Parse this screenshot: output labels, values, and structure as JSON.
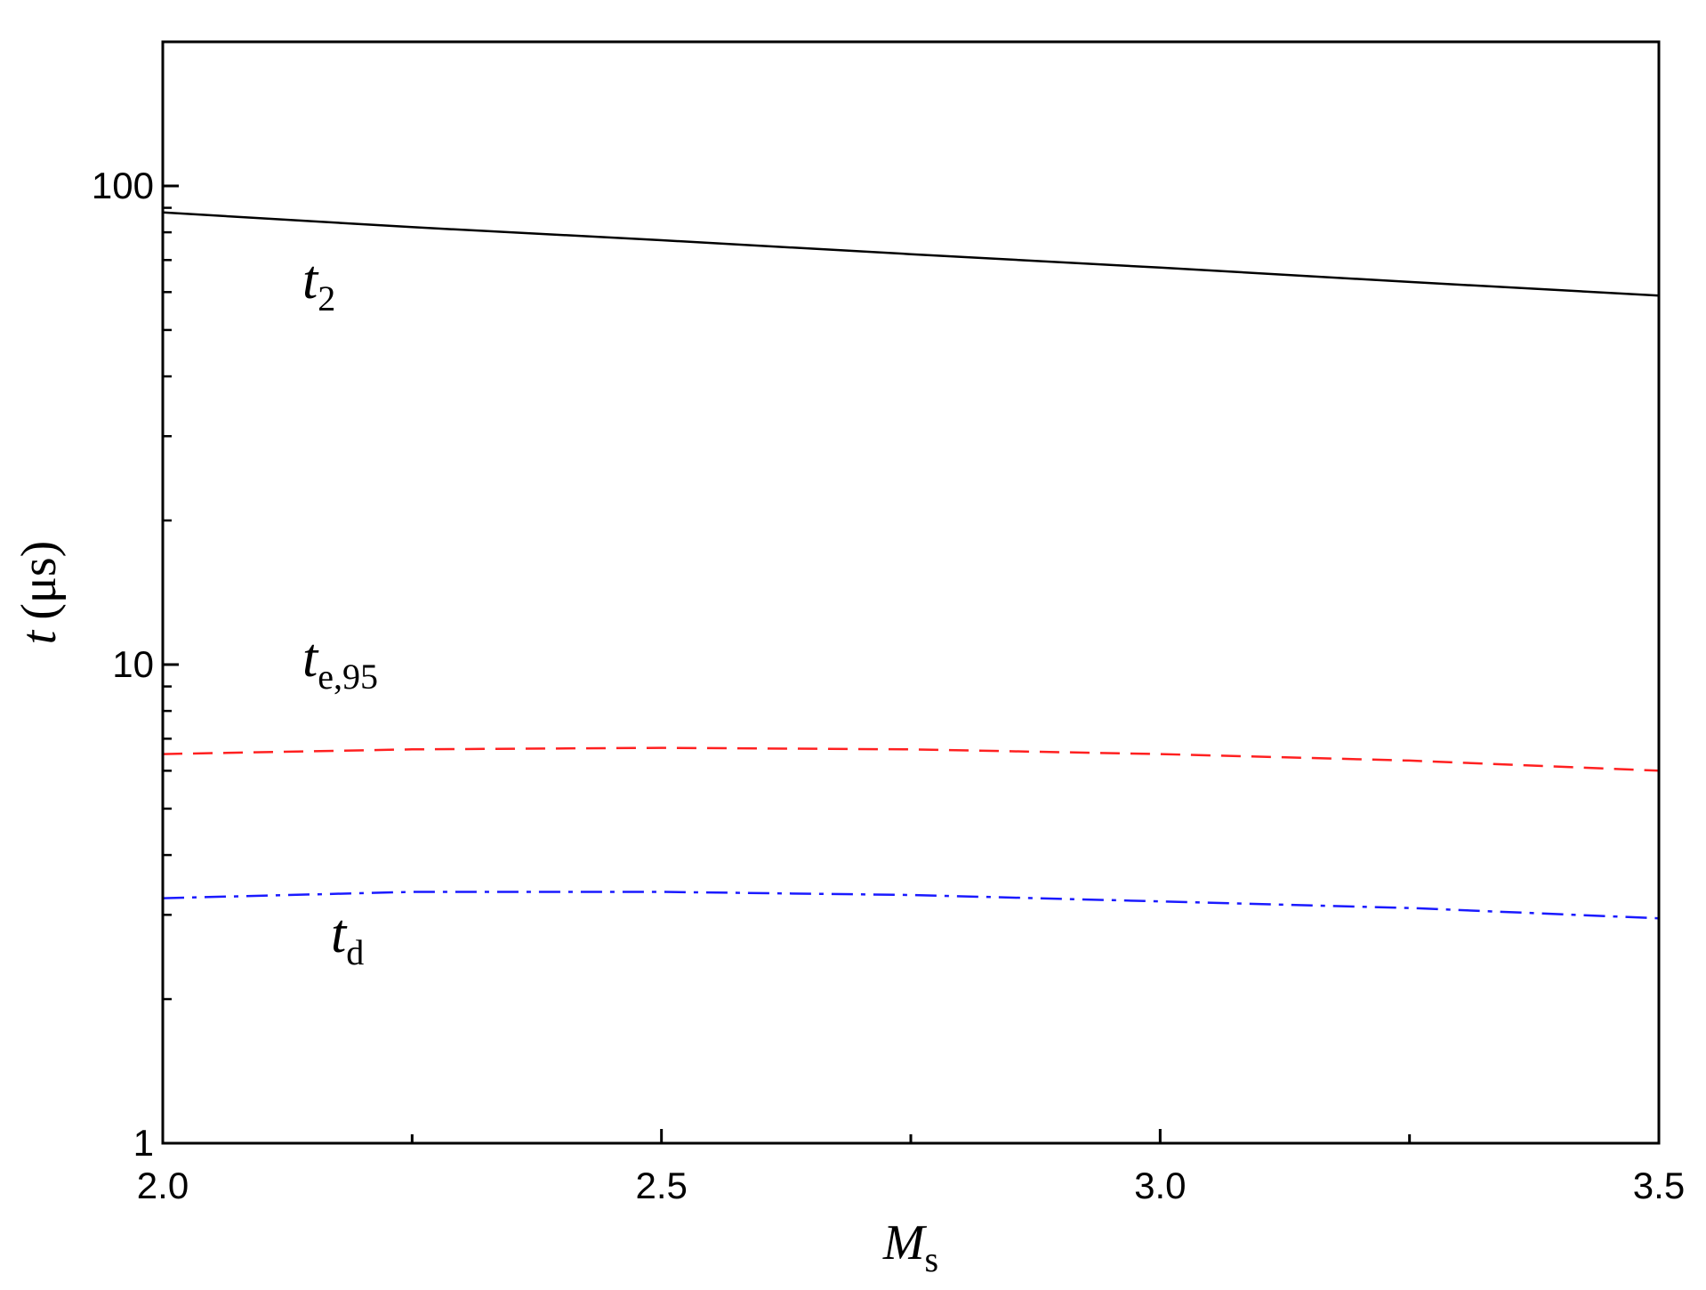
{
  "chart_data": {
    "type": "line",
    "title": "",
    "x_axis": {
      "label_main": "M",
      "label_sub": "s",
      "range": [
        2.0,
        3.5
      ],
      "scale": "linear",
      "ticks": [
        "2.0",
        "2.5",
        "3.0",
        "3.5"
      ],
      "tick_values": [
        2.0,
        2.5,
        3.0,
        3.5
      ],
      "minor_tick_values": [
        2.25,
        2.75,
        3.25
      ]
    },
    "y_axis": {
      "label_main": "t",
      "label_unit": "(μs)",
      "range": [
        1,
        200
      ],
      "scale": "log",
      "ticks": [
        "1",
        "10",
        "100"
      ],
      "tick_values": [
        1,
        10,
        100
      ]
    },
    "grid": false,
    "series": [
      {
        "name_main": "t",
        "name_sub": "2",
        "color": "#000000",
        "dash": "solid",
        "x": [
          2.0,
          2.25,
          2.5,
          2.75,
          3.0,
          3.25,
          3.5
        ],
        "y": [
          88,
          82,
          77,
          72,
          67.5,
          63,
          59
        ]
      },
      {
        "name_main": "t",
        "name_sub": "e,95",
        "color": "#ff2020",
        "dash": "dashed",
        "x": [
          2.0,
          2.25,
          2.5,
          2.75,
          3.0,
          3.25,
          3.5
        ],
        "y": [
          6.5,
          6.65,
          6.7,
          6.65,
          6.5,
          6.3,
          6.0
        ]
      },
      {
        "name_main": "t",
        "name_sub": "d",
        "color": "#1a1aff",
        "dash": "dashdot",
        "x": [
          2.0,
          2.25,
          2.5,
          2.75,
          3.0,
          3.25,
          3.5
        ],
        "y": [
          3.25,
          3.35,
          3.35,
          3.3,
          3.2,
          3.1,
          2.95
        ]
      }
    ]
  }
}
